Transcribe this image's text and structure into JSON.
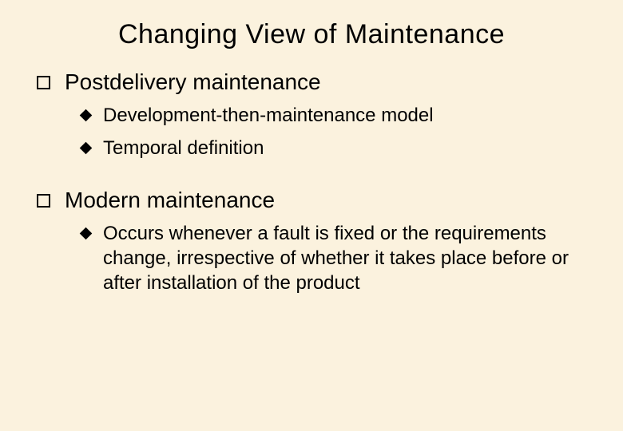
{
  "slide": {
    "background_color": "#fbf2de",
    "text_color": "#000000",
    "font_family": "Comic Sans MS",
    "title": "Changing View of Maintenance",
    "title_fontsize": 34,
    "bullets": [
      {
        "level": 1,
        "marker": "hollow-square",
        "text": "Postdelivery maintenance",
        "fontsize": 28,
        "children": [
          {
            "level": 2,
            "marker": "solid-diamond",
            "text": "Development-then-maintenance model",
            "fontsize": 24
          },
          {
            "level": 2,
            "marker": "solid-diamond",
            "text": "Temporal definition",
            "fontsize": 24
          }
        ]
      },
      {
        "level": 1,
        "marker": "hollow-square",
        "text": "Modern maintenance",
        "fontsize": 28,
        "children": [
          {
            "level": 2,
            "marker": "solid-diamond",
            "text": "Occurs whenever a fault is fixed or the requirements change, irrespective of whether it takes place before or after installation of the product",
            "fontsize": 24
          }
        ]
      }
    ]
  }
}
